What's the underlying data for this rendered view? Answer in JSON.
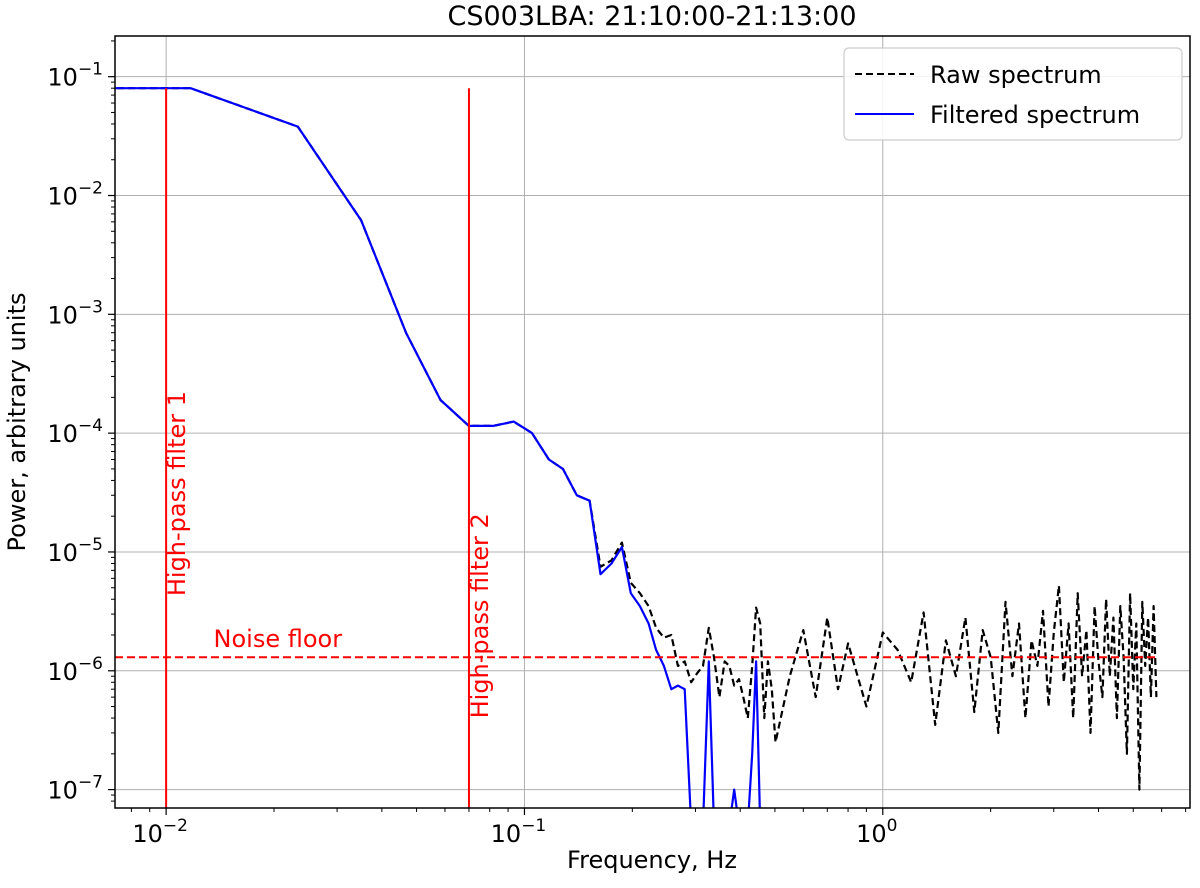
{
  "chart_data": {
    "type": "line",
    "title": "CS003LBA: 21:10:00-21:13:00",
    "xlabel": "Frequency, Hz",
    "ylabel": "Power, arbitrary units",
    "xscale": "log",
    "yscale": "log",
    "xlim": [
      0.0072,
      7.2
    ],
    "ylim": [
      7e-08,
      0.22
    ],
    "grid": true,
    "x_ticks": [
      {
        "value": 0.01,
        "base": "10",
        "exp": "−2"
      },
      {
        "value": 0.1,
        "base": "10",
        "exp": "−1"
      },
      {
        "value": 1,
        "base": "10",
        "exp": "0"
      }
    ],
    "y_ticks": [
      {
        "value": 1e-07,
        "base": "10",
        "exp": "−7"
      },
      {
        "value": 1e-06,
        "base": "10",
        "exp": "−6"
      },
      {
        "value": 1e-05,
        "base": "10",
        "exp": "−5"
      },
      {
        "value": 0.0001,
        "base": "10",
        "exp": "−4"
      },
      {
        "value": 0.001,
        "base": "10",
        "exp": "−3"
      },
      {
        "value": 0.01,
        "base": "10",
        "exp": "−2"
      },
      {
        "value": 0.1,
        "base": "10",
        "exp": "−1"
      }
    ],
    "legend": {
      "position": "top-right",
      "entries": [
        {
          "label": "Raw spectrum",
          "style": "dashed",
          "color": "#000000"
        },
        {
          "label": "Filtered spectrum",
          "style": "solid",
          "color": "#0000ff"
        }
      ]
    },
    "series": [
      {
        "name": "Raw spectrum",
        "color": "#000000",
        "style": "dashed",
        "x": [
          0.0055,
          0.0117,
          0.0233,
          0.035,
          0.0467,
          0.0583,
          0.07,
          0.0817,
          0.0933,
          0.105,
          0.117,
          0.128,
          0.14,
          0.152,
          0.163,
          0.175,
          0.187,
          0.198,
          0.21,
          0.222,
          0.233,
          0.245,
          0.257,
          0.268,
          0.28,
          0.292,
          0.303,
          0.315,
          0.327,
          0.338,
          0.35,
          0.362,
          0.373,
          0.385,
          0.397,
          0.408,
          0.42,
          0.432,
          0.443,
          0.455,
          0.467,
          0.478,
          0.49,
          0.502,
          0.55,
          0.6,
          0.65,
          0.7,
          0.75,
          0.8,
          0.9,
          1.0,
          1.1,
          1.2,
          1.3,
          1.4,
          1.5,
          1.6,
          1.7,
          1.8,
          1.9,
          2.0,
          2.1,
          2.2,
          2.3,
          2.4,
          2.5,
          2.6,
          2.7,
          2.8,
          2.9,
          3.0,
          3.1,
          3.2,
          3.3,
          3.4,
          3.5,
          3.6,
          3.7,
          3.8,
          3.9,
          4.0,
          4.1,
          4.2,
          4.3,
          4.4,
          4.5,
          4.6,
          4.7,
          4.8,
          4.9,
          5.0,
          5.1,
          5.2,
          5.3,
          5.4,
          5.5,
          5.6,
          5.7,
          5.8
        ],
        "values": [
          0.08,
          0.08,
          0.038,
          0.0062,
          0.0007,
          0.00019,
          0.000115,
          0.000115,
          0.000125,
          0.0001,
          6e-05,
          5e-05,
          3e-05,
          2.7e-05,
          7.5e-06,
          8.5e-06,
          1.2e-05,
          5.5e-06,
          4.5e-06,
          3.5e-06,
          2.3e-06,
          1.9e-06,
          2e-06,
          1.1e-06,
          1.2e-06,
          8e-07,
          9.5e-07,
          1.1e-06,
          2.3e-06,
          1.3e-06,
          6e-07,
          1.2e-06,
          1.1e-06,
          7.5e-07,
          8.5e-07,
          6e-07,
          4e-07,
          1.1e-06,
          3.4e-06,
          2.5e-06,
          4e-07,
          1.2e-06,
          7e-07,
          2.5e-07,
          9e-07,
          2.2e-06,
          6e-07,
          2.8e-06,
          7e-07,
          1.7e-06,
          5e-07,
          2.1e-06,
          1.5e-06,
          8e-07,
          3.1e-06,
          3.5e-07,
          1.8e-06,
          9e-07,
          2.8e-06,
          4.5e-07,
          2.2e-06,
          1.3e-06,
          3e-07,
          3.8e-06,
          9e-07,
          2.5e-06,
          4e-07,
          1.8e-06,
          1.1e-06,
          3.2e-06,
          5e-07,
          2.1e-06,
          5.2e-06,
          8e-07,
          2.5e-06,
          4e-07,
          4.5e-06,
          9e-07,
          2.2e-06,
          3e-07,
          3.5e-06,
          1.2e-06,
          6e-07,
          4e-06,
          9e-07,
          2.8e-06,
          4e-07,
          3.5e-06,
          1.3e-06,
          2e-07,
          4.5e-06,
          7e-07,
          2.5e-06,
          1e-07,
          3.8e-06,
          1.1e-06,
          2.8e-06,
          6e-07,
          3.5e-06,
          6e-07
        ]
      },
      {
        "name": "Filtered spectrum",
        "color": "#0000ff",
        "style": "solid",
        "x": [
          0.0055,
          0.0117,
          0.0233,
          0.035,
          0.0467,
          0.0583,
          0.07,
          0.0817,
          0.0933,
          0.105,
          0.117,
          0.128,
          0.14,
          0.152,
          0.163,
          0.175,
          0.187,
          0.198,
          0.21,
          0.222,
          0.233,
          0.245,
          0.257,
          0.268,
          0.28,
          0.292,
          0.303,
          0.315,
          0.327,
          0.338,
          0.35,
          0.362,
          0.373,
          0.385,
          0.397,
          0.408,
          0.42,
          0.432,
          0.443,
          0.455,
          0.467,
          0.478,
          0.49,
          0.502
        ],
        "values": [
          0.08,
          0.08,
          0.038,
          0.0062,
          0.0007,
          0.00019,
          0.000115,
          0.000115,
          0.000125,
          0.0001,
          6e-05,
          5e-05,
          3e-05,
          2.7e-05,
          6.5e-06,
          8e-06,
          1.1e-05,
          4.5e-06,
          3.5e-06,
          2.5e-06,
          1.5e-06,
          1.1e-06,
          7e-07,
          7.5e-07,
          7e-07,
          5e-08,
          5e-08,
          5e-08,
          1.2e-06,
          5e-08,
          5e-08,
          5e-08,
          5e-08,
          1e-07,
          5e-08,
          5e-08,
          5e-08,
          2e-07,
          1.2e-06,
          5e-08,
          5e-08,
          5e-08,
          5e-08,
          5e-08
        ]
      }
    ],
    "vlines": [
      {
        "x": 0.01,
        "color": "#ff0000",
        "label": "High-pass filter 1",
        "label_x": 0.0113,
        "label_y": 3.1e-05
      },
      {
        "x": 0.07,
        "color": "#ff0000",
        "label": "High-pass filter 2",
        "label_x": 0.079,
        "label_y": 2.9e-06
      }
    ],
    "hlines": [
      {
        "y": 1.3e-06,
        "color": "#ff0000",
        "style": "dashed",
        "label": "Noise floor",
        "label_x": 0.0205
      }
    ]
  }
}
